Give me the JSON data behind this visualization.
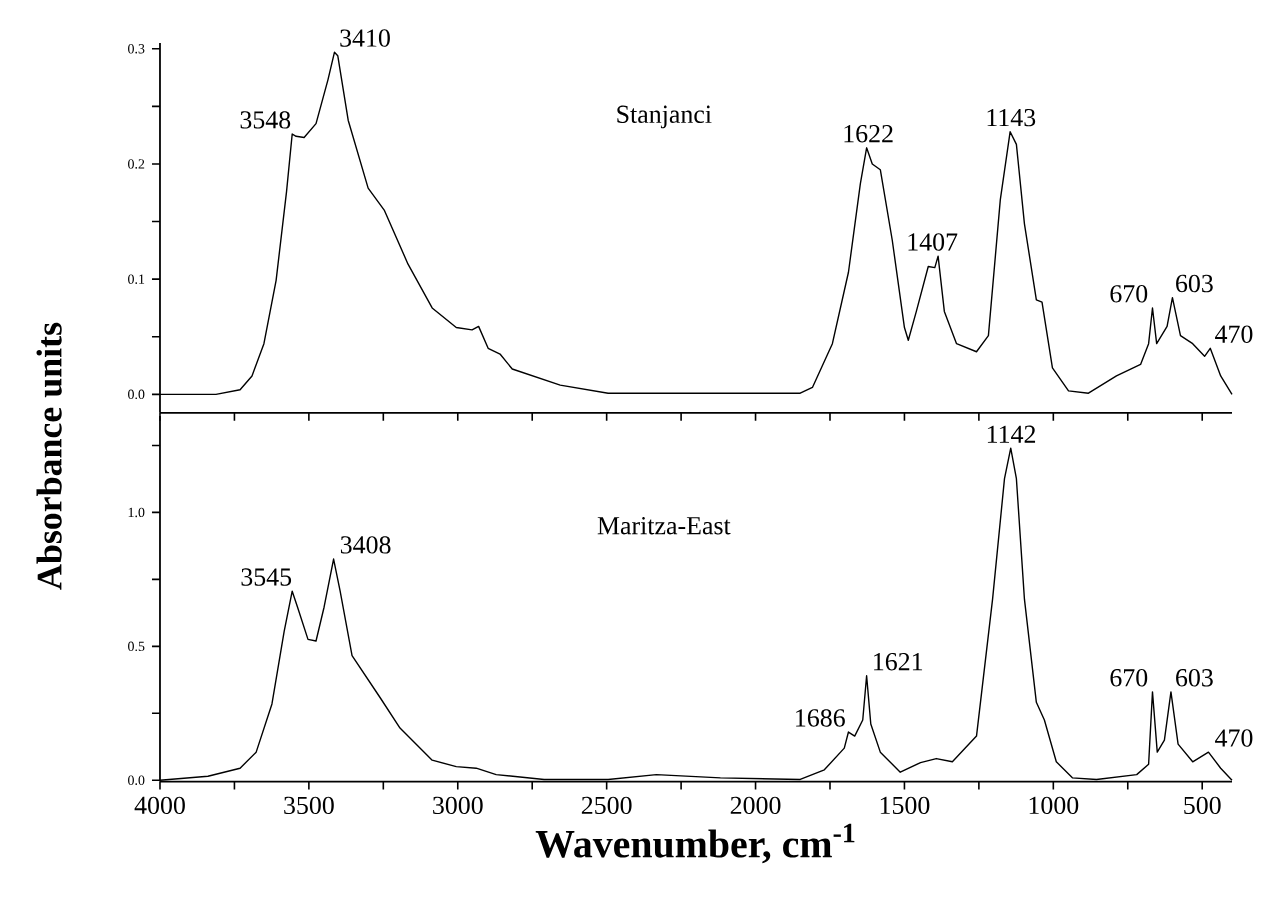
{
  "chart_data": [
    {
      "type": "line",
      "tick_labels": "y",
      "ylabel": "Absorbance units",
      "xlim": [
        4000,
        400
      ],
      "xticks": [
        {
          "value": 4000,
          "label": null
        },
        {
          "value": 3750,
          "label": null
        },
        {
          "value": 3500,
          "label": null
        },
        {
          "value": 3250,
          "label": null
        },
        {
          "value": 3000,
          "label": null
        },
        {
          "value": 2750,
          "label": null
        },
        {
          "value": 2500,
          "label": null
        },
        {
          "value": 2250,
          "label": null
        },
        {
          "value": 2000,
          "label": null
        },
        {
          "value": 1750,
          "label": null
        },
        {
          "value": 1500,
          "label": null
        },
        {
          "value": 1250,
          "label": null
        },
        {
          "value": 1000,
          "label": null
        },
        {
          "value": 750,
          "label": null
        },
        {
          "value": 500,
          "label": null
        }
      ],
      "ylim": [
        -0.016,
        0.305
      ],
      "yticks": [
        {
          "value": 0,
          "label": "0.0"
        },
        {
          "value": 0.05,
          "label": null
        },
        {
          "value": 0.1,
          "label": "0.1"
        },
        {
          "value": 0.15,
          "label": null
        },
        {
          "value": 0.2,
          "label": "0.2"
        },
        {
          "value": 0.25,
          "label": null
        },
        {
          "value": 0.3,
          "label": "0.3"
        }
      ],
      "series": [
        {
          "name": "Stanjanci",
          "color": "#000000",
          "x": [
            4000,
            3812,
            3731,
            3691,
            3651,
            3610,
            3575,
            3556,
            3543,
            3516,
            3476,
            3436,
            3414,
            3403,
            3368,
            3301,
            3247,
            3167,
            3086,
            3005,
            2952,
            2930,
            2898,
            2858,
            2817,
            2656,
            2495,
            2333,
            2118,
            1850,
            1809,
            1742,
            1688,
            1648,
            1627,
            1608,
            1581,
            1541,
            1500,
            1487,
            1460,
            1420,
            1398,
            1387,
            1366,
            1325,
            1258,
            1218,
            1178,
            1145,
            1124,
            1097,
            1057,
            1038,
            1003,
            949,
            882,
            788,
            707,
            680,
            667,
            653,
            618,
            600,
            573,
            532,
            492,
            473,
            438,
            400
          ],
          "values": [
            0.0,
            0.0,
            0.004,
            0.016,
            0.044,
            0.099,
            0.176,
            0.226,
            0.224,
            0.223,
            0.235,
            0.273,
            0.297,
            0.294,
            0.238,
            0.179,
            0.16,
            0.113,
            0.075,
            0.058,
            0.056,
            0.059,
            0.04,
            0.035,
            0.022,
            0.008,
            0.001,
            0.001,
            0.001,
            0.001,
            0.006,
            0.044,
            0.106,
            0.183,
            0.214,
            0.2,
            0.195,
            0.134,
            0.058,
            0.047,
            0.072,
            0.111,
            0.11,
            0.12,
            0.072,
            0.044,
            0.037,
            0.051,
            0.169,
            0.228,
            0.217,
            0.148,
            0.082,
            0.08,
            0.023,
            0.003,
            0.001,
            0.016,
            0.026,
            0.044,
            0.075,
            0.044,
            0.059,
            0.084,
            0.051,
            0.044,
            0.033,
            0.04,
            0.016,
            0.0
          ]
        }
      ],
      "annotations": [
        {
          "text": "3548",
          "x": 3548,
          "y": 0.226
        },
        {
          "text": "3410",
          "x": 3410,
          "y": 0.297
        },
        {
          "text": "1622",
          "x": 1622,
          "y": 0.214
        },
        {
          "text": "1407",
          "x": 1407,
          "y": 0.12
        },
        {
          "text": "1143",
          "x": 1143,
          "y": 0.228
        },
        {
          "text": "670",
          "x": 670,
          "y": 0.075
        },
        {
          "text": "603",
          "x": 603,
          "y": 0.084
        },
        {
          "text": "470",
          "x": 470,
          "y": 0.04
        }
      ]
    },
    {
      "type": "line",
      "xlabel": "Wavenumber, cm$^{-1}$",
      "xlim": [
        4000,
        400
      ],
      "xticks": [
        4000,
        {
          "value": 3750,
          "label": null
        },
        3500,
        {
          "value": 3250,
          "label": null
        },
        3000,
        {
          "value": 2750,
          "label": null
        },
        2500,
        {
          "value": 2250,
          "label": null
        },
        2000,
        {
          "value": 1750,
          "label": null
        },
        1500,
        {
          "value": 1250,
          "label": null
        },
        1000,
        {
          "value": 750,
          "label": null
        },
        500
      ],
      "ylim": [
        -0.005,
        1.36
      ],
      "yticks": [
        {
          "value": 0,
          "label": "0.0"
        },
        {
          "value": 0.25,
          "label": null
        },
        {
          "value": 0.5,
          "label": "0.5"
        },
        {
          "value": 0.75,
          "label": null
        },
        {
          "value": 1.0,
          "label": "1.0"
        },
        {
          "value": 1.25,
          "label": null
        }
      ],
      "series": [
        {
          "name": "Maritza-East",
          "color": "#000000",
          "x": [
            4000,
            3839,
            3731,
            3677,
            3624,
            3583,
            3556,
            3538,
            3503,
            3476,
            3449,
            3417,
            3395,
            3355,
            3261,
            3194,
            3086,
            3005,
            2938,
            2871,
            2710,
            2495,
            2333,
            2118,
            1850,
            1769,
            1702,
            1688,
            1667,
            1640,
            1627,
            1613,
            1581,
            1514,
            1446,
            1393,
            1339,
            1258,
            1204,
            1164,
            1143,
            1124,
            1097,
            1057,
            1030,
            990,
            936,
            855,
            720,
            680,
            667,
            651,
            627,
            605,
            581,
            532,
            479,
            438,
            400
          ],
          "values": [
            0.0,
            0.015,
            0.045,
            0.105,
            0.285,
            0.556,
            0.706,
            0.646,
            0.526,
            0.52,
            0.646,
            0.826,
            0.706,
            0.465,
            0.309,
            0.195,
            0.075,
            0.051,
            0.045,
            0.021,
            0.003,
            0.003,
            0.021,
            0.009,
            0.003,
            0.039,
            0.12,
            0.18,
            0.165,
            0.225,
            0.39,
            0.21,
            0.105,
            0.03,
            0.066,
            0.081,
            0.069,
            0.165,
            0.676,
            1.126,
            1.24,
            1.126,
            0.676,
            0.291,
            0.225,
            0.069,
            0.009,
            0.003,
            0.021,
            0.06,
            0.33,
            0.105,
            0.15,
            0.33,
            0.135,
            0.069,
            0.105,
            0.045,
            0.0
          ]
        }
      ],
      "annotations": [
        {
          "text": "3545",
          "x": 3545,
          "y": 0.706
        },
        {
          "text": "3408",
          "x": 3408,
          "y": 0.826
        },
        {
          "text": "1686",
          "x": 1686,
          "y": 0.18
        },
        {
          "text": "1621",
          "x": 1621,
          "y": 0.39
        },
        {
          "text": "1142",
          "x": 1142,
          "y": 1.24
        },
        {
          "text": "670",
          "x": 670,
          "y": 0.33
        },
        {
          "text": "603",
          "x": 603,
          "y": 0.33
        },
        {
          "text": "470",
          "x": 470,
          "y": 0.105
        }
      ]
    }
  ]
}
